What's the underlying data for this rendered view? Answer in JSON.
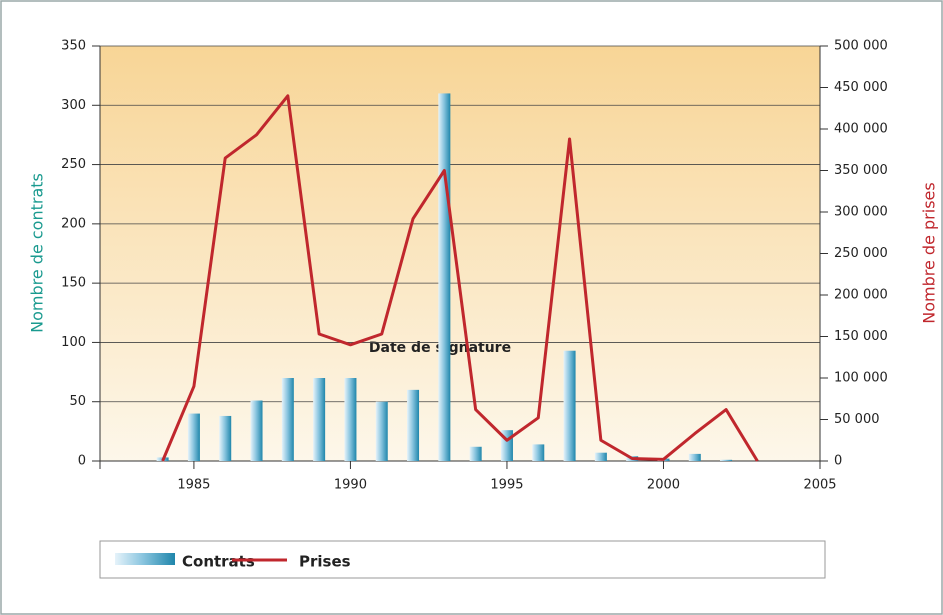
{
  "chart_data": {
    "type": "bar-line",
    "xlabel": "Date de signature",
    "ylabel": "Nombre de contrats",
    "y2label": "Nombre de prises",
    "x": [
      1984,
      1985,
      1986,
      1987,
      1988,
      1989,
      1990,
      1991,
      1992,
      1993,
      1994,
      1995,
      1996,
      1997,
      1998,
      1999,
      2000,
      2001,
      2002,
      2003
    ],
    "series": [
      {
        "name": "Contrats",
        "color": "#1f86ab",
        "type": "bar",
        "axis": "y",
        "values": [
          3,
          40,
          38,
          51,
          70,
          70,
          70,
          50,
          60,
          310,
          12,
          26,
          14,
          93,
          7,
          4,
          2,
          6,
          1,
          0
        ]
      },
      {
        "name": "Prises",
        "color": "#c0272d",
        "type": "line",
        "axis": "y2",
        "values": [
          0,
          90000,
          365000,
          393000,
          440000,
          153000,
          140000,
          153000,
          292000,
          350000,
          62000,
          25000,
          52000,
          388000,
          25000,
          3000,
          2000,
          33000,
          62000,
          0
        ]
      }
    ],
    "xlim": [
      1982,
      2005
    ],
    "xticks": [
      1985,
      1990,
      1995,
      2000,
      2005
    ],
    "ylim": [
      0,
      350
    ],
    "yticks": [
      0,
      50,
      100,
      150,
      200,
      250,
      300,
      350
    ],
    "y2lim": [
      0,
      500000
    ],
    "y2ticks": [
      0,
      {
        "value": 50000,
        "label": "50 000"
      },
      {
        "value": 100000,
        "label": "100 000"
      },
      {
        "value": 150000,
        "label": "150 000"
      },
      {
        "value": 200000,
        "label": "200 000"
      },
      {
        "value": 250000,
        "label": "250 000"
      },
      {
        "value": 300000,
        "label": "300 000"
      },
      {
        "value": 350000,
        "label": "350 000"
      },
      {
        "value": 400000,
        "label": "400 000"
      },
      {
        "value": 450000,
        "label": "450 000"
      },
      {
        "value": 500000,
        "label": "500 000"
      }
    ],
    "grid": true
  }
}
